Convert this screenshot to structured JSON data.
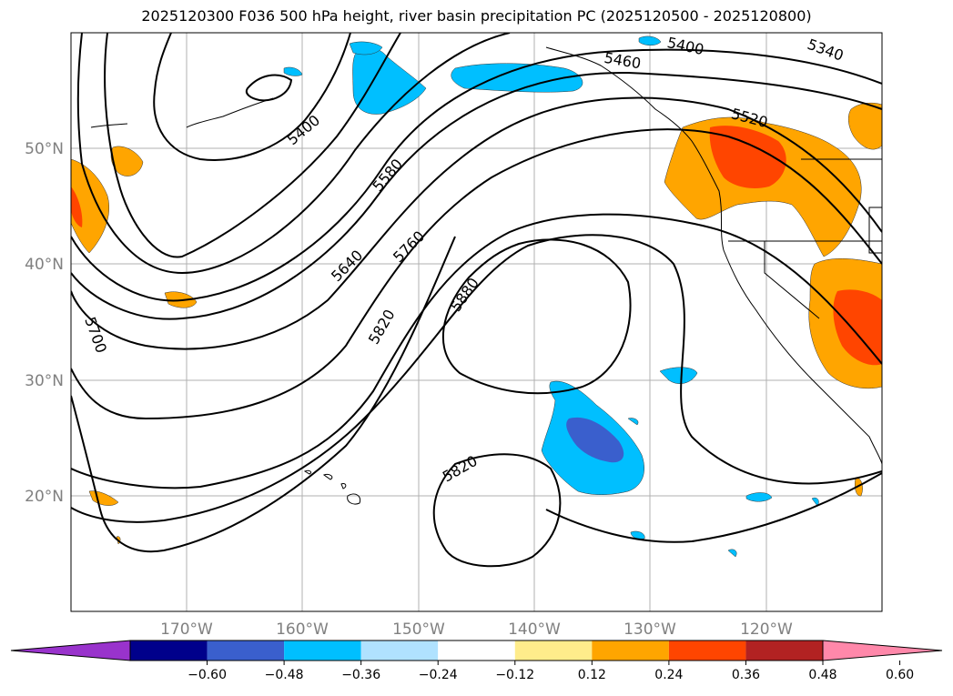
{
  "title": "2025120300 F036 500 hPa height, river basin precipitation PC (2025120500 - 2025120800)",
  "map": {
    "lon_labels": [
      "170°W",
      "160°W",
      "150°W",
      "140°W",
      "130°W",
      "120°W"
    ],
    "lat_labels": [
      "50°N",
      "40°N",
      "30°N",
      "20°N"
    ],
    "contour_labels": [
      "5400",
      "5580",
      "5640",
      "5760",
      "5820",
      "5880",
      "5700",
      "5820",
      "5400",
      "5340",
      "5460",
      "5520"
    ]
  },
  "colorbar": {
    "tick_labels": [
      "−0.60",
      "−0.48",
      "−0.36",
      "−0.24",
      "−0.12",
      "0.12",
      "0.24",
      "0.36",
      "0.48",
      "0.60"
    ],
    "colors": [
      "#9933cc",
      "#00008b",
      "#3a5fcd",
      "#00bfff",
      "#b0e2ff",
      "#ffffff",
      "#ffec8b",
      "#ffa500",
      "#ff4500",
      "#b22222",
      "#ff88aa"
    ]
  }
}
